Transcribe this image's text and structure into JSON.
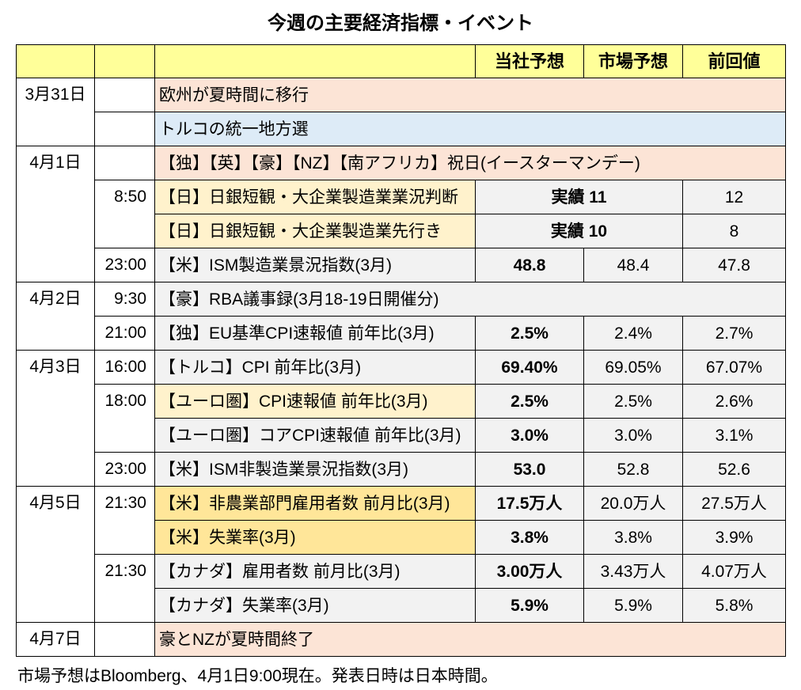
{
  "title": "今週の主要経済指標・イベント",
  "columns": {
    "our_forecast": "当社予想",
    "market_forecast": "市場予想",
    "previous": "前回値"
  },
  "rows": [
    {
      "date": "3月31日",
      "event": "欧州が夏時間に移行"
    },
    {
      "event": "トルコの統一地方選"
    },
    {
      "date": "4月1日",
      "event": "【独】【英】【豪】【NZ】【南アフリカ】祝日(イースターマンデー)"
    },
    {
      "time": "8:50",
      "event": "【日】日銀短観・大企業製造業業況判断",
      "actual": "実績 11",
      "previous": "12"
    },
    {
      "event": "【日】日銀短観・大企業製造業先行き",
      "actual": "実績 10",
      "previous": "8"
    },
    {
      "time": "23:00",
      "event": "【米】ISM製造業景況指数(3月)",
      "our_forecast": "48.8",
      "market_forecast": "48.4",
      "previous": "47.8"
    },
    {
      "date": "4月2日",
      "time": "9:30",
      "event": "【豪】RBA議事録(3月18-19日開催分)"
    },
    {
      "time": "21:00",
      "event": "【独】EU基準CPI速報値 前年比(3月)",
      "our_forecast": "2.5%",
      "market_forecast": "2.4%",
      "previous": "2.7%"
    },
    {
      "date": "4月3日",
      "time": "16:00",
      "event": "【トルコ】CPI 前年比(3月)",
      "our_forecast": "69.40%",
      "market_forecast": "69.05%",
      "previous": "67.07%"
    },
    {
      "time": "18:00",
      "event": "【ユーロ圏】CPI速報値 前年比(3月)",
      "our_forecast": "2.5%",
      "market_forecast": "2.5%",
      "previous": "2.6%"
    },
    {
      "event": "【ユーロ圏】コアCPI速報値 前年比(3月)",
      "our_forecast": "3.0%",
      "market_forecast": "3.0%",
      "previous": "3.1%"
    },
    {
      "time": "23:00",
      "event": "【米】ISM非製造業景況指数(3月)",
      "our_forecast": "53.0",
      "market_forecast": "52.8",
      "previous": "52.6"
    },
    {
      "date": "4月5日",
      "time": "21:30",
      "event": "【米】非農業部門雇用者数 前月比(3月)",
      "our_forecast": "17.5万人",
      "market_forecast": "20.0万人",
      "previous": "27.5万人"
    },
    {
      "event": "【米】失業率(3月)",
      "our_forecast": "3.8%",
      "market_forecast": "3.8%",
      "previous": "3.9%"
    },
    {
      "time": "21:30",
      "event": "【カナダ】雇用者数 前月比(3月)",
      "our_forecast": "3.00万人",
      "market_forecast": "3.43万人",
      "previous": "4.07万人"
    },
    {
      "event": "【カナダ】失業率(3月)",
      "our_forecast": "5.9%",
      "market_forecast": "5.9%",
      "previous": "5.8%"
    },
    {
      "date": "4月7日",
      "event": "豪とNZが夏時間終了"
    }
  ],
  "footer": "市場予想はBloomberg、4月1日9:00現在。発表日時は日本時間。",
  "colors": {
    "header_yellow": "#FFFF99",
    "salmon": "#FCE4D6",
    "light_blue": "#DDEBF7",
    "cream": "#FFF2CC",
    "gold": "#FFE699",
    "gray": "#F2F2F2",
    "grid": "#000000"
  }
}
